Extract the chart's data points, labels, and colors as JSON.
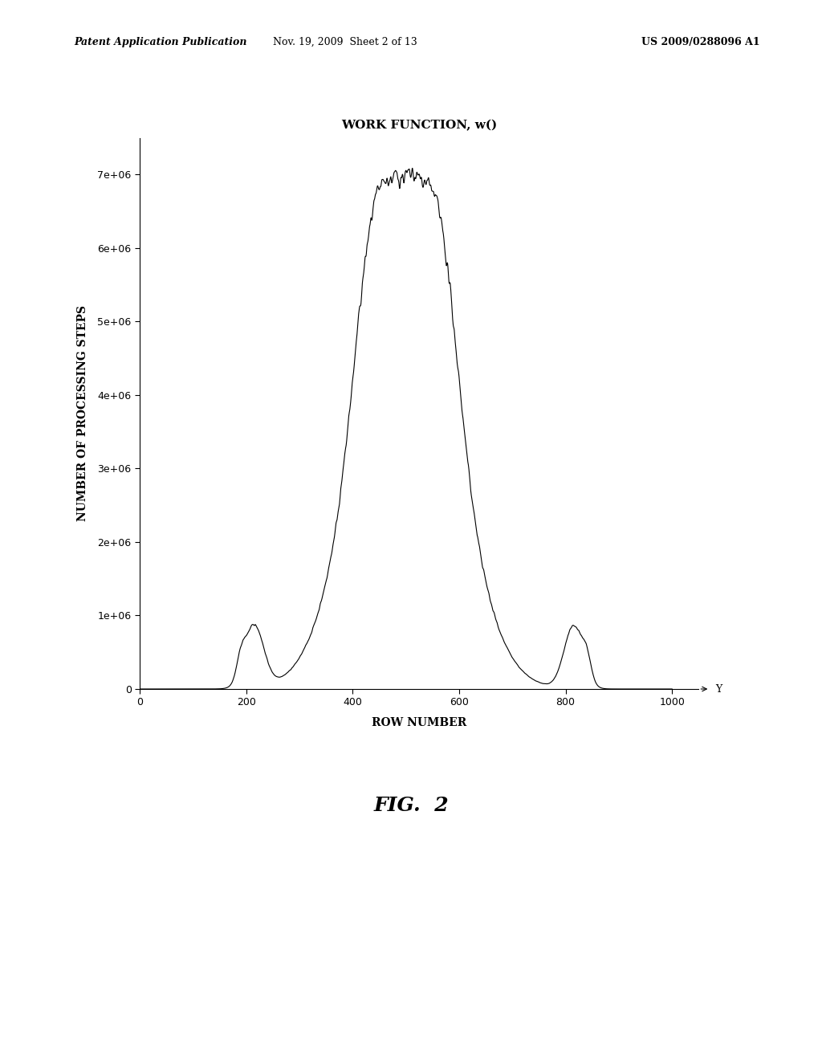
{
  "title": "WORK FUNCTION, w()",
  "xlabel": "ROW NUMBER",
  "ylabel": "NUMBER OF PROCESSING STEPS",
  "y_arrow_label": "Y",
  "fig_label": "FIG.  2",
  "header_left": "Patent Application Publication",
  "header_mid": "Nov. 19, 2009  Sheet 2 of 13",
  "header_right": "US 2009/0288096 A1",
  "xlim": [
    0,
    1050
  ],
  "ylim": [
    0,
    7500000.0
  ],
  "yticks": [
    0,
    1000000.0,
    2000000.0,
    3000000.0,
    4000000.0,
    5000000.0,
    6000000.0,
    7000000.0
  ],
  "ytick_labels": [
    "0",
    "1e+06",
    "2e+06",
    "3e+06",
    "4e+06",
    "5e+06",
    "6e+06",
    "7e+06"
  ],
  "xticks": [
    0,
    200,
    400,
    600,
    800,
    1000
  ],
  "background_color": "#ffffff",
  "line_color": "#000000",
  "title_fontsize": 11,
  "axis_label_fontsize": 10,
  "tick_fontsize": 9,
  "header_fontsize": 9,
  "fig_label_fontsize": 18
}
